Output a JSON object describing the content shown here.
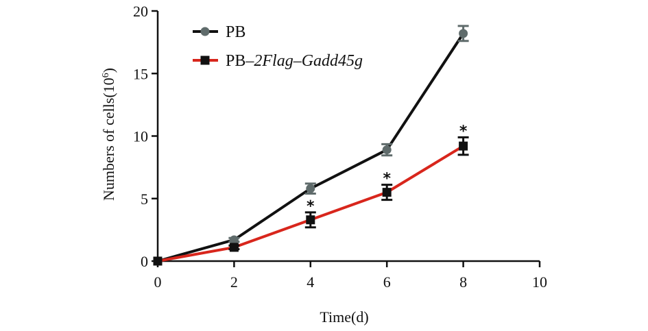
{
  "chart_data": {
    "type": "line",
    "title": "",
    "xlabel": "Time(d)",
    "ylabel_base": "Numbers of cells(10",
    "ylabel_sup": "6",
    "ylabel_close": ")",
    "xlim": [
      0,
      10
    ],
    "ylim": [
      0,
      20
    ],
    "xticks": [
      0,
      2,
      4,
      6,
      8,
      10
    ],
    "yticks": [
      0,
      5,
      10,
      15,
      20
    ],
    "grid": false,
    "legend_position": "top-left",
    "significance_marker": "*",
    "series": [
      {
        "name": "PB",
        "label_plain": "PB",
        "label_italic": "",
        "color": "#111111",
        "marker": "circle",
        "marker_color": "#5f6b6b",
        "x": [
          0,
          2,
          4,
          6,
          8
        ],
        "y": [
          0,
          1.7,
          5.8,
          8.9,
          18.2
        ],
        "err": [
          0,
          0.15,
          0.4,
          0.45,
          0.6
        ],
        "significant": [
          false,
          false,
          false,
          false,
          false
        ]
      },
      {
        "name": "PB-2Flag-Gadd45g",
        "label_plain": "PB–",
        "label_italic": "2Flag–Gadd45g",
        "color": "#d8261c",
        "marker": "square",
        "marker_color": "#111111",
        "x": [
          0,
          2,
          4,
          6,
          8
        ],
        "y": [
          0,
          1.1,
          3.3,
          5.5,
          9.2
        ],
        "err": [
          0,
          0.15,
          0.6,
          0.6,
          0.7
        ],
        "significant": [
          false,
          false,
          true,
          true,
          true
        ]
      }
    ]
  }
}
